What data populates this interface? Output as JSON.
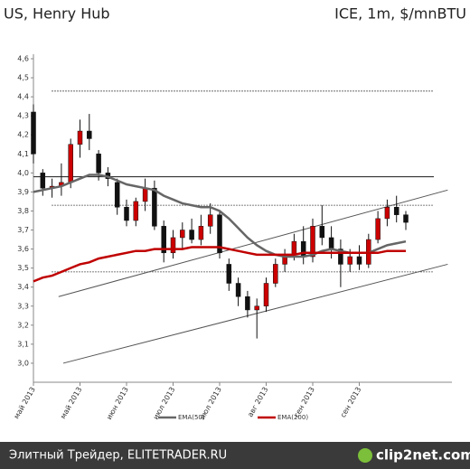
{
  "chart_data": {
    "type": "candlestick",
    "title": "US, Henry Hub",
    "subtitle": "ICE, 1m, $/mnBTU",
    "categories": [
      "май 2013",
      null,
      null,
      null,
      null,
      "май 2013",
      null,
      null,
      null,
      null,
      "июн 2013",
      null,
      null,
      null,
      null,
      "июл 2013",
      null,
      null,
      null,
      null,
      "июл 2013",
      null,
      null,
      null,
      null,
      "авг 2013",
      null,
      null,
      null,
      null,
      "сен 2013",
      null,
      null,
      null,
      null,
      "сен 2013",
      null,
      null,
      null,
      null,
      null
    ],
    "open": [
      4.32,
      4.0,
      3.92,
      3.93,
      3.95,
      4.15,
      4.22,
      4.1,
      4.0,
      3.95,
      3.82,
      3.75,
      3.85,
      3.92,
      3.72,
      3.58,
      3.66,
      3.7,
      3.65,
      3.72,
      3.78,
      3.52,
      3.42,
      3.35,
      3.28,
      3.3,
      3.42,
      3.52,
      3.57,
      3.64,
      3.56,
      3.72,
      3.66,
      3.6,
      3.52,
      3.56,
      3.52,
      3.65,
      3.76,
      3.82,
      3.78
    ],
    "high": [
      4.36,
      4.02,
      3.97,
      4.05,
      4.18,
      4.28,
      4.31,
      4.12,
      4.03,
      3.97,
      3.86,
      3.87,
      3.97,
      3.96,
      3.75,
      3.7,
      3.74,
      3.76,
      3.78,
      3.84,
      3.8,
      3.55,
      3.45,
      3.38,
      3.34,
      3.45,
      3.55,
      3.6,
      3.68,
      3.72,
      3.76,
      3.83,
      3.72,
      3.65,
      3.6,
      3.62,
      3.68,
      3.8,
      3.86,
      3.88,
      3.8
    ],
    "low": [
      4.05,
      3.88,
      3.87,
      3.88,
      3.92,
      4.08,
      4.12,
      3.96,
      3.93,
      3.78,
      3.72,
      3.72,
      3.8,
      3.7,
      3.53,
      3.55,
      3.6,
      3.63,
      3.62,
      3.68,
      3.55,
      3.38,
      3.3,
      3.24,
      3.13,
      3.27,
      3.4,
      3.48,
      3.54,
      3.52,
      3.53,
      3.62,
      3.55,
      3.4,
      3.48,
      3.49,
      3.5,
      3.63,
      3.72,
      3.74,
      3.7
    ],
    "close": [
      4.1,
      3.92,
      3.93,
      3.95,
      4.15,
      4.22,
      4.18,
      4.0,
      3.97,
      3.82,
      3.75,
      3.85,
      3.92,
      3.72,
      3.58,
      3.66,
      3.7,
      3.65,
      3.72,
      3.78,
      3.58,
      3.42,
      3.35,
      3.28,
      3.3,
      3.42,
      3.52,
      3.57,
      3.64,
      3.56,
      3.72,
      3.66,
      3.6,
      3.52,
      3.56,
      3.52,
      3.65,
      3.76,
      3.82,
      3.78,
      3.74
    ],
    "up_color": "#cc0000",
    "down_color": "#111111",
    "series": [
      {
        "name": "EMA(50)",
        "color": "#666666",
        "values": [
          3.9,
          3.91,
          3.92,
          3.93,
          3.95,
          3.97,
          3.99,
          3.99,
          3.98,
          3.96,
          3.94,
          3.93,
          3.92,
          3.91,
          3.88,
          3.86,
          3.84,
          3.83,
          3.82,
          3.82,
          3.8,
          3.76,
          3.71,
          3.66,
          3.62,
          3.59,
          3.57,
          3.56,
          3.56,
          3.56,
          3.57,
          3.59,
          3.6,
          3.59,
          3.58,
          3.58,
          3.58,
          3.6,
          3.62,
          3.63,
          3.64
        ]
      },
      {
        "name": "EMA(200)",
        "color": "#c00000",
        "values": [
          3.43,
          3.45,
          3.46,
          3.48,
          3.5,
          3.52,
          3.53,
          3.55,
          3.56,
          3.57,
          3.58,
          3.59,
          3.59,
          3.6,
          3.6,
          3.6,
          3.6,
          3.61,
          3.61,
          3.61,
          3.61,
          3.6,
          3.59,
          3.58,
          3.57,
          3.57,
          3.57,
          3.57,
          3.57,
          3.58,
          3.58,
          3.58,
          3.58,
          3.58,
          3.58,
          3.58,
          3.58,
          3.58,
          3.59,
          3.59,
          3.59
        ]
      }
    ],
    "levels": [
      {
        "value": 4.43,
        "style": "dashed"
      },
      {
        "value": 3.98,
        "style": "solid"
      },
      {
        "value": 3.83,
        "style": "dashed"
      },
      {
        "value": 3.48,
        "style": "dashed"
      }
    ],
    "trendlines": [
      {
        "x": [
          2.7,
          44.5
        ],
        "y": [
          3.35,
          3.91
        ]
      },
      {
        "x": [
          3.2,
          44.5
        ],
        "y": [
          3.0,
          3.52
        ]
      }
    ],
    "ylim": [
      2.9,
      4.6
    ],
    "yticks": [
      {
        "value": 3.0,
        "label": "3,0"
      },
      {
        "value": 3.1,
        "label": "3,1"
      },
      {
        "value": 3.2,
        "label": "3,2"
      },
      {
        "value": 3.3,
        "label": "3,3"
      },
      {
        "value": 3.4,
        "label": "3,4"
      },
      {
        "value": 3.5,
        "label": "3,5"
      },
      {
        "value": 3.6,
        "label": "3,6"
      },
      {
        "value": 3.7,
        "label": "3,7"
      },
      {
        "value": 3.8,
        "label": "3,8"
      },
      {
        "value": 3.9,
        "label": "3,9"
      },
      {
        "value": 4.0,
        "label": "4,0"
      },
      {
        "value": 4.1,
        "label": "4,1"
      },
      {
        "value": 4.2,
        "label": "4,2"
      },
      {
        "value": 4.3,
        "label": "4,3"
      },
      {
        "value": 4.4,
        "label": "4,4"
      },
      {
        "value": 4.5,
        "label": "4,5"
      },
      {
        "value": 4.6,
        "label": "4,6"
      }
    ]
  },
  "footer": {
    "text": "Элитный Трейдер, ELITETRADER.RU",
    "logo": "clip2net.com"
  }
}
